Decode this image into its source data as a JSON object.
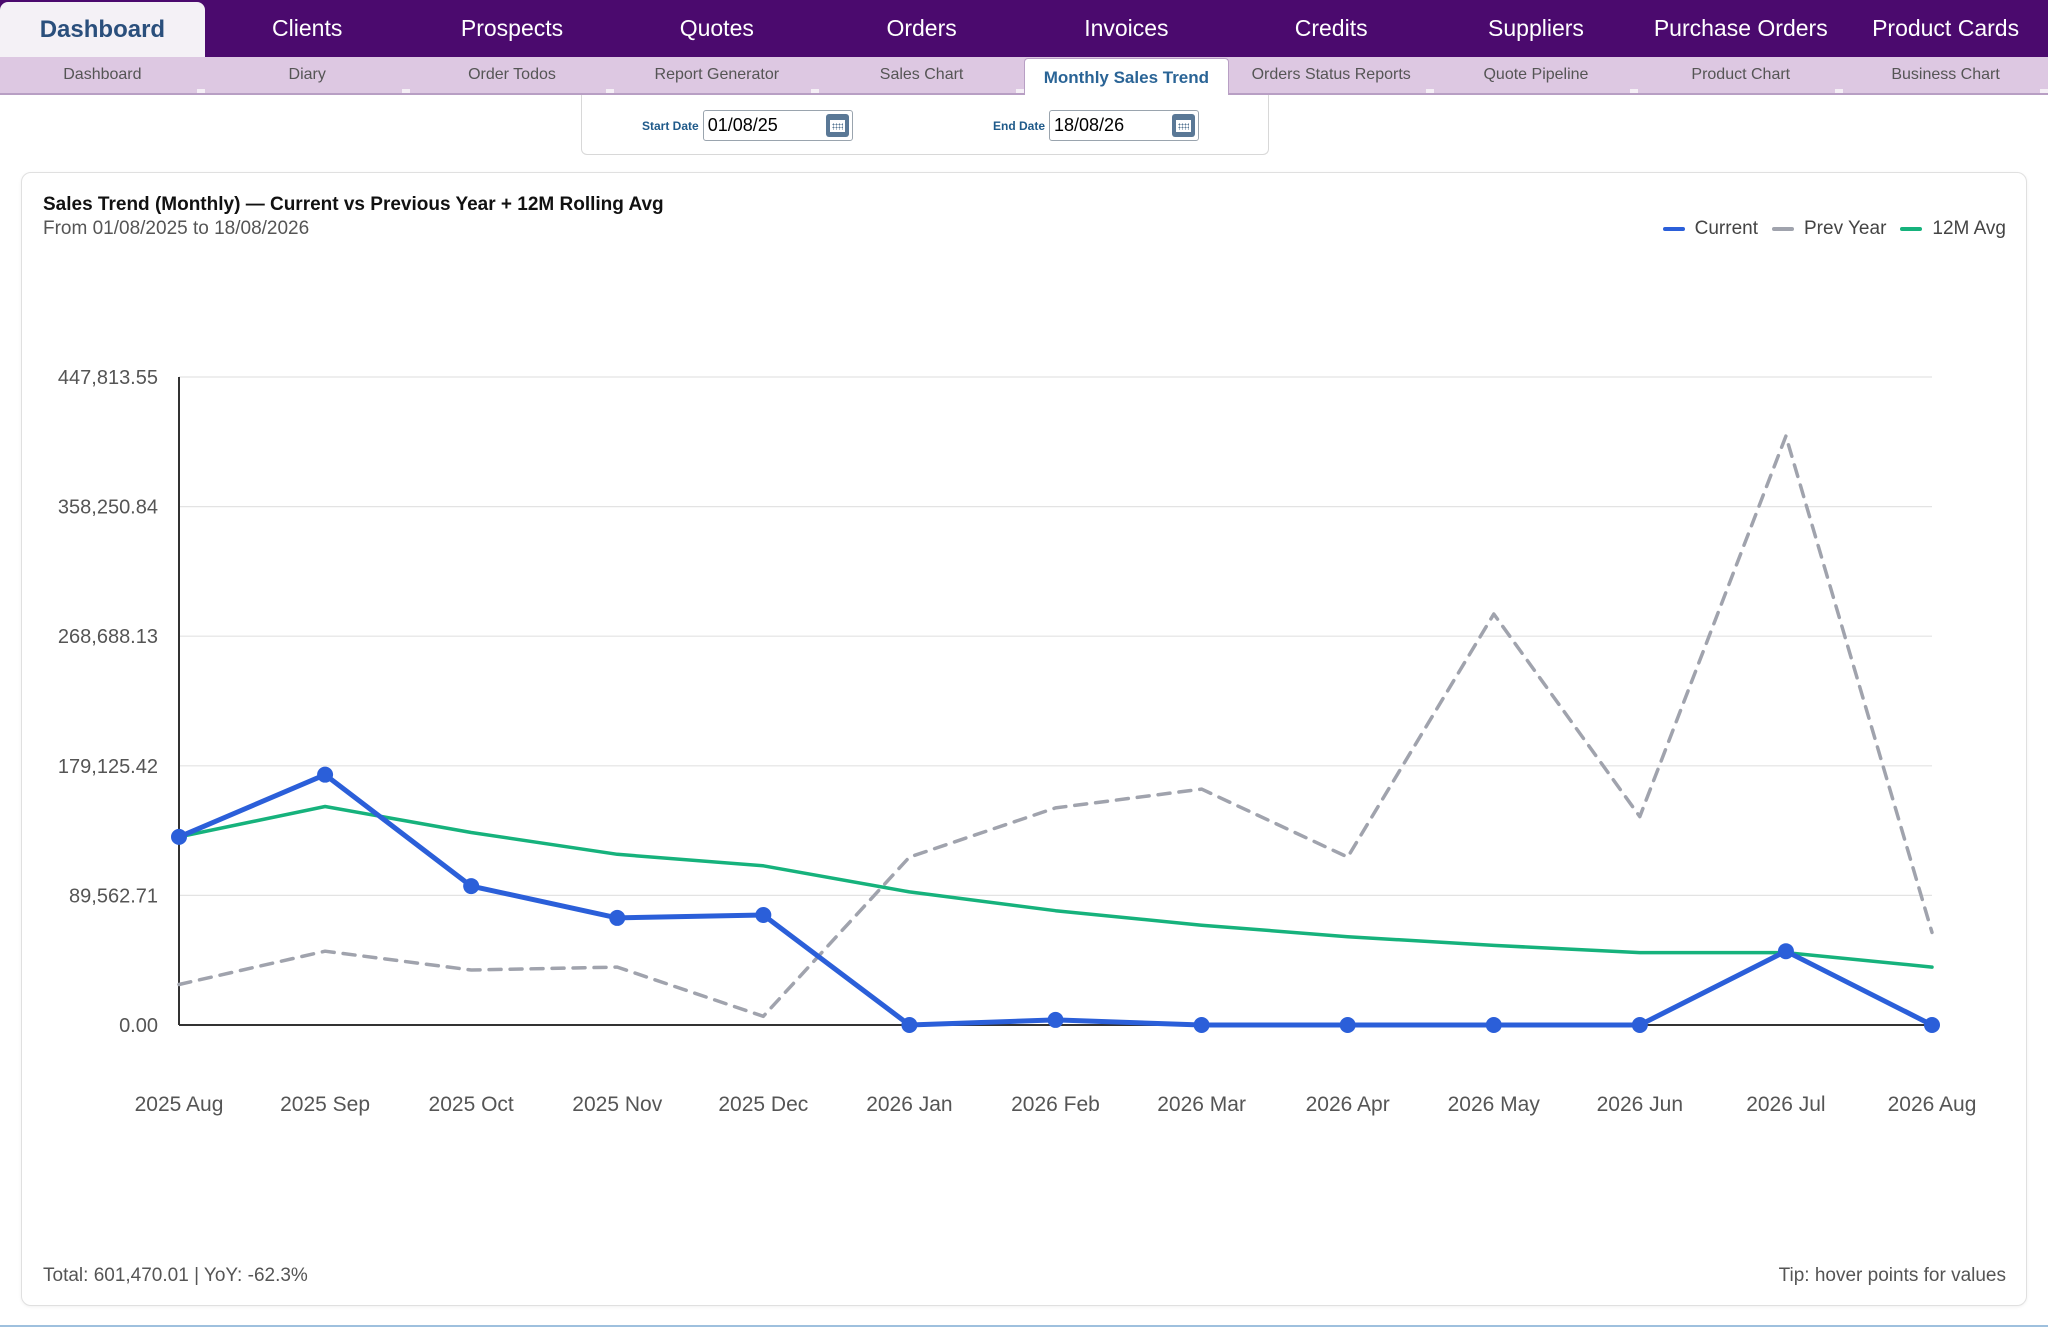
{
  "topnav": {
    "tabs": [
      {
        "label": "Dashboard",
        "active": true
      },
      {
        "label": "Clients"
      },
      {
        "label": "Prospects"
      },
      {
        "label": "Quotes"
      },
      {
        "label": "Orders"
      },
      {
        "label": "Invoices"
      },
      {
        "label": "Credits"
      },
      {
        "label": "Suppliers"
      },
      {
        "label": "Purchase Orders"
      },
      {
        "label": "Product Cards"
      }
    ]
  },
  "subnav": {
    "tabs": [
      {
        "label": "Dashboard"
      },
      {
        "label": "Diary"
      },
      {
        "label": "Order Todos"
      },
      {
        "label": "Report Generator"
      },
      {
        "label": "Sales Chart"
      },
      {
        "label": "Monthly Sales Trend",
        "active": true
      },
      {
        "label": "Orders Status Reports"
      },
      {
        "label": "Quote Pipeline"
      },
      {
        "label": "Product Chart"
      },
      {
        "label": "Business Chart"
      }
    ]
  },
  "filters": {
    "start_label": "Start Date",
    "start_value": "01/08/25",
    "end_label": "End Date",
    "end_value": "18/08/26",
    "calendar_icon": "calendar-icon"
  },
  "chart": {
    "title": "Sales Trend (Monthly) — Current vs Previous Year + 12M Rolling Avg",
    "subtitle": "From 01/08/2025 to 18/08/2026",
    "footer_left": "Total: 601,470.01 | YoY: -62.3%",
    "footer_right": "Tip: hover points for values"
  },
  "chart_data": {
    "type": "line",
    "title": "Sales Trend (Monthly) — Current vs Previous Year + 12M Rolling Avg",
    "subtitle": "From 01/08/2025 to 18/08/2026",
    "categories": [
      "2025 Aug",
      "2025 Sep",
      "2025 Oct",
      "2025 Nov",
      "2025 Dec",
      "2026 Jan",
      "2026 Feb",
      "2026 Mar",
      "2026 Apr",
      "2026 May",
      "2026 Jun",
      "2026 Jul",
      "2026 Aug"
    ],
    "yticks": [
      "0.00",
      "89,562.71",
      "179,125.42",
      "268,688.13",
      "358,250.84",
      "447,813.55"
    ],
    "ylim": [
      0,
      447813.55
    ],
    "series": [
      {
        "name": "Current",
        "color": "#2b5fd9",
        "style": "solid",
        "markers": true,
        "values": [
          130000,
          173000,
          96000,
          74000,
          76000,
          0,
          3500,
          0,
          0,
          0,
          0,
          51000,
          0
        ]
      },
      {
        "name": "Prev Year",
        "color": "#a0a3ad",
        "style": "dashed",
        "markers": false,
        "values": [
          28000,
          51000,
          38000,
          40000,
          6000,
          116000,
          150000,
          163000,
          116000,
          284000,
          144000,
          407000,
          64000
        ]
      },
      {
        "name": "12M Avg",
        "color": "#16b27c",
        "style": "solid",
        "markers": false,
        "values": [
          130000,
          151000,
          133000,
          118000,
          110000,
          92000,
          79000,
          69000,
          61000,
          55000,
          50000,
          50000,
          40000
        ]
      }
    ],
    "legend_position": "top-right",
    "grid": true
  }
}
